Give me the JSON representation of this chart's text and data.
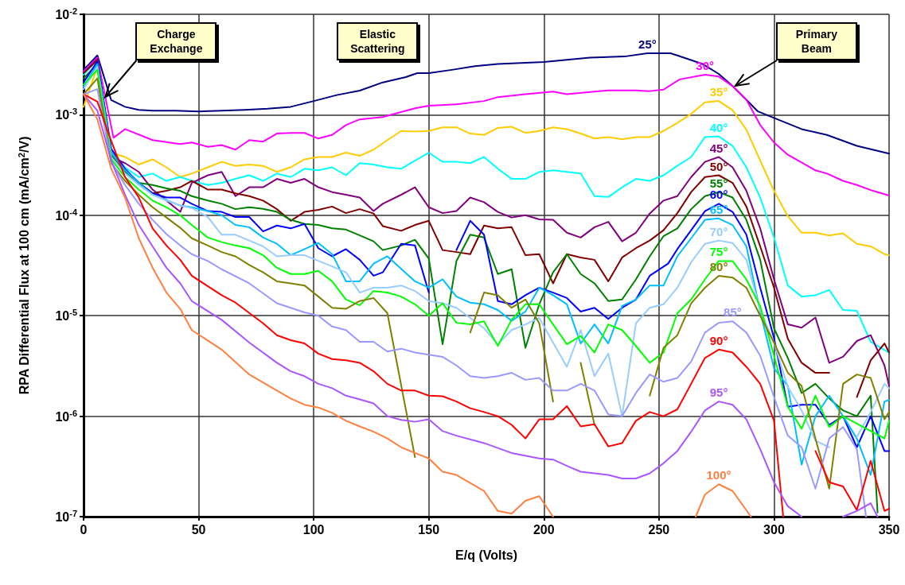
{
  "chart_data": {
    "type": "line",
    "xlabel": "E/q (Volts)",
    "ylabel": "RPA Differential Flux at 100 cm (mA/cm$^{2}$/V)",
    "log": "y",
    "grid": true,
    "legend": false,
    "marker": "none",
    "line_style": "solid",
    "xlim": [
      0,
      350
    ],
    "xticks": [
      0,
      50,
      100,
      150,
      200,
      250,
      300,
      350
    ],
    "ylim": [
      1e-07,
      0.01
    ],
    "yticks": [
      {
        "value": 1e-07,
        "label": "10$^{-7}$"
      },
      {
        "value": 1e-06,
        "label": "10$^{-6}$"
      },
      {
        "value": 1e-05,
        "label": "10$^{-5}$"
      },
      {
        "value": 0.0001,
        "label": "10$^{-4}$"
      },
      {
        "value": 0.001,
        "label": "10$^{-3}$"
      },
      {
        "value": 0.01,
        "label": "10$^{-2}$"
      }
    ],
    "annotations": [
      "Charge Exchange",
      "Elastic Scattering",
      "Primary Beam"
    ],
    "series": [
      {
        "name": "25°",
        "color": "#000080",
        "x": [
          0,
          6,
          12,
          18,
          24,
          30,
          40,
          50,
          60,
          70,
          80,
          90,
          100,
          110,
          120,
          130,
          140,
          145,
          150,
          160,
          170,
          180,
          200,
          220,
          235,
          245,
          255,
          258,
          269,
          276,
          282,
          288,
          293,
          300,
          312,
          323,
          336,
          350
        ],
        "values": [
          0.0028,
          0.0039,
          0.0014,
          0.0012,
          0.00112,
          0.0011,
          0.0011,
          0.00108,
          0.0011,
          0.00112,
          0.00115,
          0.0012,
          0.00137,
          0.00157,
          0.00174,
          0.0021,
          0.00237,
          0.0026,
          0.0026,
          0.0028,
          0.00305,
          0.0032,
          0.00335,
          0.0037,
          0.0038,
          0.0041,
          0.0041,
          0.0039,
          0.0032,
          0.00255,
          0.00193,
          0.00141,
          0.00108,
          0.00093,
          0.00072,
          0.00063,
          0.00049,
          0.00041
        ]
      },
      {
        "name": "30°",
        "color": "#ff00ff",
        "x": [
          0,
          6,
          13,
          18,
          30,
          42,
          47,
          54,
          60,
          66,
          72,
          78,
          84,
          90,
          96,
          102,
          108,
          114,
          120,
          130,
          144,
          150,
          162,
          174,
          180,
          192,
          204,
          210,
          222,
          228,
          240,
          246,
          252,
          259,
          270,
          276,
          282,
          288,
          294,
          300,
          306,
          318,
          323,
          330,
          336,
          343,
          350
        ],
        "values": [
          0.0027,
          0.0037,
          0.00059,
          0.00072,
          0.00056,
          0.00051,
          0.00053,
          0.00048,
          0.0005,
          0.00045,
          0.00056,
          0.00054,
          0.00065,
          0.00066,
          0.00066,
          0.00058,
          0.00063,
          0.00079,
          0.0009,
          0.00095,
          0.00116,
          0.00123,
          0.00127,
          0.00137,
          0.0015,
          0.0016,
          0.0017,
          0.0016,
          0.0017,
          0.00175,
          0.00175,
          0.00172,
          0.00178,
          0.00225,
          0.0025,
          0.0024,
          0.00193,
          0.00141,
          0.00079,
          0.00053,
          0.0004,
          0.00028,
          0.00026,
          0.00022,
          0.0002,
          0.000175,
          0.000157
        ]
      },
      {
        "name": "35°",
        "color": "#ffcc00",
        "x": [
          0,
          6,
          12,
          18,
          24,
          30,
          36,
          42,
          47,
          54,
          60,
          66,
          72,
          78,
          84,
          90,
          96,
          102,
          108,
          114,
          120,
          126,
          132,
          138,
          144,
          150,
          156,
          162,
          168,
          174,
          180,
          186,
          192,
          198,
          204,
          210,
          216,
          222,
          228,
          234,
          240,
          246,
          252,
          258,
          264,
          270,
          276,
          282,
          288,
          294,
          300,
          306,
          312,
          318,
          324,
          330,
          336,
          342,
          348,
          350
        ],
        "values": [
          0.0012,
          0.003,
          0.00042,
          0.00038,
          0.00032,
          0.00036,
          0.0003,
          0.00024,
          0.00026,
          0.0003,
          0.00034,
          0.00031,
          0.00032,
          0.00031,
          0.00027,
          0.0003,
          0.00036,
          0.00038,
          0.00038,
          0.00042,
          0.00039,
          0.00045,
          0.00056,
          0.00069,
          0.00068,
          0.00069,
          0.00075,
          0.00075,
          0.00065,
          0.00063,
          0.00074,
          0.00076,
          0.00066,
          0.00069,
          0.00075,
          0.00072,
          0.00065,
          0.00058,
          0.0006,
          0.00057,
          0.0006,
          0.0006,
          0.00069,
          0.00083,
          0.00102,
          0.00133,
          0.00137,
          0.00111,
          0.00071,
          0.00035,
          0.000175,
          9.8e-05,
          6.7e-05,
          6.7e-05,
          6.3e-05,
          6.6e-05,
          5.2e-05,
          4.9e-05,
          4.1e-05,
          4e-05
        ]
      },
      {
        "name": "40°",
        "color": "#00ffff",
        "x": [
          0,
          6,
          12,
          18,
          24,
          30,
          36,
          42,
          47,
          54,
          60,
          66,
          72,
          78,
          84,
          90,
          96,
          102,
          108,
          114,
          120,
          126,
          132,
          138,
          144,
          150,
          156,
          162,
          168,
          174,
          180,
          186,
          192,
          198,
          204,
          210,
          216,
          222,
          228,
          234,
          240,
          246,
          252,
          258,
          264,
          270,
          276,
          282,
          288,
          294,
          300,
          306,
          312,
          318,
          324,
          330,
          336,
          342,
          350
        ],
        "values": [
          0.0025,
          0.0035,
          0.00044,
          0.0003,
          0.00024,
          0.00026,
          0.00022,
          0.00024,
          0.00022,
          0.0002,
          0.00021,
          0.00023,
          0.00025,
          0.00022,
          0.00026,
          0.00024,
          0.00029,
          0.00028,
          0.0003,
          0.00025,
          0.00033,
          0.00032,
          0.0003,
          0.00029,
          0.00035,
          0.00042,
          0.00034,
          0.00034,
          0.00033,
          0.00038,
          0.00029,
          0.00023,
          0.00023,
          0.00027,
          0.00028,
          0.00027,
          0.00026,
          0.000155,
          0.000152,
          0.00019,
          0.00023,
          0.00022,
          0.00025,
          0.00031,
          0.00038,
          0.0006,
          0.00061,
          0.00049,
          0.0003,
          0.00015,
          6e-05,
          2e-05,
          1.55e-05,
          1.6e-05,
          1.8e-05,
          1.14e-05,
          1.12e-05,
          5.5e-06,
          4.3e-06
        ]
      },
      {
        "name": "45°",
        "color": "#800080",
        "x": [
          0,
          6,
          12,
          18,
          24,
          30,
          36,
          42,
          47,
          54,
          60,
          66,
          72,
          78,
          84,
          90,
          96,
          102,
          108,
          114,
          120,
          126,
          130,
          138,
          144,
          150,
          156,
          162,
          168,
          174,
          180,
          186,
          192,
          198,
          204,
          210,
          216,
          222,
          228,
          234,
          240,
          246,
          252,
          258,
          264,
          270,
          276,
          282,
          288,
          294,
          300,
          306,
          312,
          318,
          324,
          330,
          336,
          342,
          348,
          350
        ],
        "values": [
          0.0026,
          0.0036,
          0.00038,
          0.00033,
          0.00027,
          0.00018,
          0.00014,
          0.000108,
          0.00021,
          0.00025,
          0.00027,
          0.000155,
          0.00019,
          0.00019,
          0.00023,
          0.00021,
          0.00023,
          0.00019,
          0.00017,
          0.00016,
          0.00015,
          0.00011,
          0.00013,
          0.00016,
          0.00019,
          0.00012,
          0.000105,
          0.00011,
          0.00015,
          0.000135,
          0.000108,
          9.5e-05,
          0.0001,
          9.1e-05,
          9e-05,
          6.7e-05,
          6e-05,
          7.6e-05,
          8.6e-05,
          5.5e-05,
          6.7e-05,
          0.000104,
          0.00014,
          0.000155,
          0.00024,
          0.00034,
          0.00038,
          0.0003,
          0.000175,
          7.4e-05,
          2.3e-05,
          8.2e-06,
          7.6e-06,
          9.6e-06,
          3.4e-06,
          3.9e-06,
          5.6e-06,
          6.4e-06,
          3.2e-06,
          2e-06
        ]
      },
      {
        "name": "50°",
        "color": "#800000",
        "x": [
          0,
          6,
          12,
          18,
          24,
          30,
          36,
          42,
          47,
          54,
          60,
          66,
          72,
          78,
          84,
          90,
          96,
          102,
          108,
          114,
          120,
          126,
          130,
          138,
          144,
          150,
          156,
          162,
          168,
          174,
          180,
          186,
          192,
          198,
          204,
          210,
          216,
          222,
          228,
          234,
          240,
          246,
          252,
          258,
          264,
          270,
          276,
          282,
          288,
          294,
          300,
          306,
          312,
          318,
          324,
          330,
          336,
          342,
          348,
          350
        ],
        "values": [
          0.0026,
          0.0035,
          0.00042,
          0.00028,
          0.00021,
          0.000165,
          0.000175,
          0.00019,
          0.00022,
          0.00018,
          0.00018,
          0.000165,
          0.000155,
          0.00014,
          0.000115,
          8.8e-05,
          0.000108,
          0.000113,
          0.000122,
          0.000105,
          0.000115,
          0.000104,
          7.8e-05,
          7e-05,
          8e-05,
          8.8e-05,
          4.5e-05,
          4.3e-05,
          4.1e-05,
          7.9e-05,
          7.4e-05,
          7.6e-05,
          4e-05,
          4.1e-05,
          2.1e-05,
          4.1e-05,
          3.8e-05,
          3.6e-05,
          2.2e-05,
          3.8e-05,
          4.7e-05,
          5.6e-05,
          7.1e-05,
          0.000105,
          0.00017,
          0.00024,
          0.00025,
          0.00021,
          0.000122,
          4.9e-05,
          1.9e-05,
          5.9e-06,
          3.4e-06,
          2.7e-06,
          2.7e-06,
          null,
          1.55e-06,
          3.6e-06,
          5.3e-06,
          4.3e-06
        ]
      },
      {
        "name": "55°",
        "color": "#008000",
        "x": [
          0,
          6,
          12,
          18,
          24,
          30,
          36,
          42,
          47,
          54,
          60,
          66,
          72,
          78,
          84,
          90,
          96,
          102,
          108,
          114,
          120,
          126,
          130,
          138,
          144,
          150,
          156,
          162,
          168,
          174,
          180,
          186,
          192,
          198,
          204,
          210,
          216,
          222,
          228,
          234,
          240,
          246,
          252,
          258,
          264,
          270,
          276,
          282,
          288,
          294,
          300,
          306,
          312,
          318,
          324,
          330,
          336,
          342,
          345
        ],
        "values": [
          0.0023,
          0.0032,
          0.0004,
          0.00027,
          0.00021,
          0.0002,
          0.000185,
          0.000175,
          0.000155,
          0.00014,
          0.00013,
          0.000115,
          0.00012,
          0.000116,
          0.000108,
          9e-05,
          8.2e-05,
          8e-05,
          7.4e-05,
          7.2e-05,
          6.3e-05,
          5.5e-05,
          4.5e-05,
          5e-05,
          5.7e-05,
          3.7e-05,
          5.2e-06,
          3.5e-05,
          6.4e-05,
          6e-05,
          2.6e-05,
          2.9e-05,
          4.8e-06,
          1.3e-05,
          2.7e-05,
          4.1e-05,
          2.6e-05,
          2.1e-05,
          1.4e-05,
          1.45e-05,
          2.3e-05,
          3.9e-05,
          6.2e-05,
          7.4e-05,
          0.000115,
          0.000155,
          0.00017,
          0.00015,
          9e-05,
          3.6e-05,
          7.5e-06,
          3.8e-06,
          1.7e-06,
          2.1e-06,
          1.5e-06,
          1.14e-06,
          1e-06,
          1.6e-06,
          1.1e-07
        ]
      },
      {
        "name": "60°",
        "color": "#0000ff",
        "x": [
          0,
          6,
          12,
          18,
          24,
          30,
          36,
          42,
          47,
          54,
          60,
          66,
          72,
          78,
          84,
          90,
          96,
          102,
          108,
          114,
          120,
          126,
          130,
          138,
          144,
          150,
          156,
          162,
          168,
          174,
          180,
          186,
          192,
          198,
          204,
          210,
          216,
          222,
          228,
          234,
          240,
          246,
          254,
          258,
          264,
          270,
          276,
          282,
          288,
          294,
          300,
          306,
          312,
          318,
          324,
          330,
          336,
          342,
          348,
          350
        ],
        "values": [
          0.0021,
          0.0034,
          0.00046,
          0.00029,
          0.00021,
          0.000165,
          0.00015,
          0.00015,
          0.00013,
          0.00011,
          0.000108,
          9.6e-05,
          9.6e-05,
          6.9e-05,
          7.9e-05,
          7.4e-05,
          8.2e-05,
          4.7e-05,
          3.9e-05,
          4.6e-05,
          3.6e-05,
          2.5e-05,
          2.7e-05,
          5.2e-05,
          5e-05,
          1.7e-05,
          null,
          4.5e-05,
          8.8e-05,
          6.4e-05,
          1.4e-05,
          1.3e-05,
          1.6e-05,
          1.9e-05,
          1.7e-05,
          1.5e-05,
          1.1e-05,
          1.2e-05,
          9.3e-06,
          1.2e-05,
          1.45e-05,
          2.5e-05,
          3.3e-05,
          4.6e-05,
          7.1e-05,
          0.00011,
          0.00013,
          0.000108,
          6.4e-05,
          1.9e-05,
          6e-06,
          1.24e-06,
          1.3e-06,
          1.3e-06,
          8.2e-07,
          1e-06,
          4.9e-07,
          1e-06,
          4.5e-07,
          4.5e-07
        ]
      },
      {
        "name": "65°",
        "color": "#00bfff",
        "x": [
          0,
          6,
          12,
          18,
          24,
          30,
          42,
          47,
          54,
          60,
          66,
          72,
          78,
          84,
          90,
          96,
          102,
          108,
          114,
          120,
          126,
          132,
          144,
          150,
          156,
          162,
          168,
          174,
          180,
          186,
          192,
          198,
          204,
          210,
          216,
          222,
          228,
          234,
          240,
          246,
          252,
          258,
          264,
          270,
          276,
          282,
          288,
          294,
          300,
          306,
          312,
          318,
          324,
          330,
          336,
          342,
          348,
          350
        ],
        "values": [
          0.0019,
          0.0032,
          0.00042,
          0.00028,
          0.00021,
          0.00016,
          0.000125,
          0.00012,
          0.00011,
          0.0001,
          8e-05,
          7.6e-05,
          6e-05,
          5.2e-05,
          4e-05,
          4.6e-05,
          5.3e-05,
          4.1e-05,
          2.2e-05,
          2.2e-05,
          3.3e-05,
          3.9e-05,
          2.2e-05,
          1.9e-05,
          2.3e-05,
          1.55e-05,
          1.35e-05,
          1.3e-05,
          1.14e-05,
          8.9e-06,
          1.1e-05,
          1.9e-05,
          1.6e-05,
          1.3e-05,
          5.3e-06,
          8.2e-06,
          5.3e-06,
          1.25e-05,
          1.45e-05,
          2e-05,
          2e-05,
          3.9e-05,
          5.9e-05,
          9e-05,
          9.3e-05,
          8e-05,
          4.9e-05,
          1.1e-05,
          3e-06,
          2e-06,
          3.3e-07,
          1e-06,
          1.6e-06,
          1e-06,
          6e-07,
          2.6e-07,
          1.4e-06,
          1.45e-06
        ]
      },
      {
        "name": "70°",
        "color": "#99ccff",
        "x": [
          0,
          6,
          12,
          18,
          24,
          30,
          36,
          42,
          47,
          54,
          60,
          66,
          72,
          78,
          84,
          90,
          96,
          108,
          114,
          120,
          126,
          132,
          138,
          144,
          150,
          156,
          162,
          168,
          174,
          180,
          186,
          192,
          198,
          204,
          210,
          216,
          222,
          228,
          234,
          240,
          246,
          252,
          258,
          264,
          270,
          276,
          282,
          288,
          294,
          300,
          306,
          312,
          318,
          324,
          330,
          336,
          342,
          348,
          350
        ],
        "values": [
          0.0018,
          0.003,
          0.00038,
          0.00026,
          0.0002,
          0.00016,
          0.00014,
          0.000125,
          0.000118,
          9.6e-05,
          6.4e-05,
          6.4e-05,
          5.6e-05,
          4.9e-05,
          3.9e-05,
          4e-05,
          4e-05,
          3.1e-05,
          2.7e-05,
          1.7e-05,
          1.9e-05,
          1.9e-05,
          2e-05,
          1.76e-05,
          1.4e-05,
          1.33e-05,
          1.2e-05,
          9.5e-06,
          7.5e-06,
          5.2e-06,
          7.2e-06,
          8.2e-06,
          9.5e-06,
          5.4e-06,
          3.1e-06,
          7.2e-06,
          2.5e-06,
          4.2e-06,
          1e-06,
          8.4e-06,
          1.2e-05,
          1.3e-05,
          1.9e-05,
          3.4e-05,
          5.2e-05,
          5.6e-05,
          5.3e-05,
          3.6e-05,
          1.14e-05,
          5.4e-06,
          1.96e-06,
          1.14e-06,
          5.7e-07,
          4.9e-07,
          null,
          6.2e-07,
          1.1e-06,
          2.1e-06,
          1.9e-06
        ]
      },
      {
        "name": "75°",
        "color": "#00ff00",
        "x": [
          0,
          6,
          12,
          18,
          24,
          30,
          36,
          42,
          47,
          54,
          60,
          66,
          72,
          78,
          84,
          90,
          96,
          102,
          108,
          114,
          120,
          126,
          132,
          138,
          144,
          150,
          156,
          162,
          168,
          174,
          180,
          186,
          192,
          198,
          204,
          210,
          216,
          222,
          228,
          234,
          240,
          246,
          252,
          258,
          264,
          270,
          276,
          282,
          288,
          294,
          300,
          306,
          312,
          318,
          324,
          330,
          348,
          350
        ],
        "values": [
          0.002,
          0.0028,
          0.00036,
          0.00024,
          0.00018,
          0.00014,
          0.00012,
          0.0001,
          8e-05,
          6e-05,
          5.4e-05,
          5e-05,
          4.7e-05,
          4e-05,
          3e-05,
          2.6e-05,
          2.6e-05,
          2.8e-05,
          2.2e-05,
          1.45e-05,
          1.27e-05,
          1.76e-05,
          1.7e-05,
          1.55e-05,
          1.3e-05,
          1e-05,
          1.33e-05,
          8.5e-06,
          8.2e-06,
          8.8e-06,
          5e-06,
          9.1e-06,
          1.3e-05,
          1.3e-05,
          8.2e-06,
          5.2e-06,
          6.3e-06,
          4.3e-06,
          8.2e-06,
          7.2e-06,
          5e-06,
          3.4e-06,
          4.3e-06,
          1.06e-05,
          1.45e-05,
          2.3e-05,
          3.5e-05,
          3.5e-05,
          2.3e-05,
          1.25e-05,
          4e-06,
          1.24e-06,
          7.5e-07,
          1.6e-06,
          7.8e-07,
          1e-06,
          6e-07,
          9e-07
        ]
      },
      {
        "name": "80°",
        "color": "#808000",
        "x": [
          0,
          6,
          12,
          18,
          24,
          30,
          36,
          42,
          47,
          54,
          60,
          66,
          72,
          78,
          84,
          90,
          96,
          102,
          108,
          114,
          120,
          126,
          132,
          144,
          156,
          168,
          174,
          180,
          186,
          192,
          198,
          204,
          210,
          216,
          222,
          234,
          246,
          252,
          258,
          264,
          270,
          276,
          282,
          288,
          294,
          300,
          306,
          312,
          318,
          324,
          330,
          336,
          342,
          348,
          350
        ],
        "values": [
          0.0016,
          0.0023,
          0.00033,
          0.00022,
          0.00016,
          0.00012,
          9.5e-05,
          7.5e-05,
          5.9e-05,
          5e-05,
          4.3e-05,
          3.9e-05,
          3.2e-05,
          2.7e-05,
          2.2e-05,
          2.1e-05,
          2e-05,
          1.55e-05,
          1.2e-05,
          1.17e-05,
          1.4e-05,
          1.5e-05,
          1.06e-05,
          3.9e-07,
          null,
          6.8e-06,
          1.7e-05,
          1.6e-05,
          1.2e-05,
          1.45e-05,
          8.4e-06,
          1.4e-06,
          null,
          3.4e-06,
          8.2e-07,
          null,
          1.6e-06,
          4.8e-06,
          6.4e-06,
          1.33e-05,
          1.9e-05,
          2.5e-05,
          2.4e-05,
          1.9e-05,
          1e-05,
          5.4e-06,
          2.7e-06,
          2e-06,
          6e-07,
          1.9e-07,
          2.1e-06,
          2.6e-06,
          2.4e-06,
          9.3e-07,
          1.1e-06
        ]
      },
      {
        "name": "85°",
        "color": "#9999ff",
        "x": [
          0,
          6,
          12,
          18,
          24,
          30,
          36,
          42,
          47,
          54,
          60,
          72,
          84,
          90,
          96,
          102,
          108,
          114,
          120,
          126,
          132,
          138,
          144,
          150,
          156,
          162,
          168,
          174,
          180,
          186,
          192,
          198,
          204,
          210,
          216,
          222,
          228,
          234,
          240,
          246,
          252,
          258,
          264,
          270,
          276,
          282,
          288,
          294,
          300,
          306,
          312,
          318,
          324,
          330,
          336,
          340
        ],
        "values": [
          0.0016,
          0.0018,
          0.00034,
          0.0002,
          0.00013,
          9e-05,
          6.5e-05,
          5e-05,
          4.1e-05,
          3.5e-05,
          2.9e-05,
          2.1e-05,
          1.33e-05,
          1.2e-05,
          1.08e-05,
          1e-05,
          7.8e-06,
          7.2e-06,
          5.5e-06,
          5.5e-06,
          4.4e-06,
          4.7e-06,
          4.3e-06,
          4.1e-06,
          3.9e-06,
          3.2e-06,
          2.5e-06,
          2.4e-06,
          2.5e-06,
          2.7e-06,
          2.3e-06,
          2.4e-06,
          1.8e-06,
          1.8e-06,
          2.1e-06,
          1.8e-06,
          1.04e-06,
          1e-06,
          1.7e-06,
          2.6e-06,
          2.2e-06,
          2.4e-06,
          3.5e-06,
          6.8e-06,
          8.5e-06,
          8.8e-06,
          6.8e-06,
          4e-06,
          1.55e-06,
          6.4e-07,
          4.9e-07,
          1.9e-07,
          6e-07,
          7.8e-07,
          4.7e-07,
          1e-07
        ]
      },
      {
        "name": "90°",
        "color": "#ff0000",
        "x": [
          0,
          6,
          12,
          18,
          24,
          30,
          36,
          42,
          47,
          60,
          66,
          78,
          84,
          90,
          96,
          102,
          108,
          114,
          120,
          126,
          132,
          138,
          144,
          150,
          156,
          162,
          168,
          174,
          180,
          186,
          192,
          198,
          204,
          210,
          216,
          222,
          228,
          234,
          240,
          246,
          252,
          258,
          264,
          270,
          276,
          282,
          288,
          294,
          300,
          304,
          310,
          318,
          324,
          330,
          336,
          342,
          348,
          350
        ],
        "values": [
          0.0016,
          0.00135,
          0.00055,
          0.00024,
          0.00015,
          7.4e-05,
          5e-05,
          3.6e-05,
          2.5e-05,
          1.6e-05,
          1.35e-05,
          8.4e-06,
          6.4e-06,
          5.7e-06,
          5.3e-06,
          4.2e-06,
          3.7e-06,
          3.6e-06,
          3.4e-06,
          2.8e-06,
          2.1e-06,
          1.8e-06,
          1.8e-06,
          1.6e-06,
          1.58e-06,
          1.4e-06,
          1.2e-06,
          1.1e-06,
          1e-06,
          8.2e-07,
          6e-07,
          9.3e-07,
          9.3e-07,
          1.26e-06,
          7.9e-07,
          8.3e-07,
          5e-07,
          5.4e-07,
          9e-07,
          1.1e-06,
          1e-06,
          1.17e-06,
          2.1e-06,
          3.8e-06,
          4.6e-06,
          4.3e-06,
          3.1e-06,
          2.1e-06,
          9e-07,
          1e-07,
          null,
          4.5e-07,
          2.2e-07,
          2e-07,
          1.16e-07,
          3.6e-07,
          1.14e-07,
          1.2e-07
        ]
      },
      {
        "name": "95°",
        "color": "#aa55ff",
        "x": [
          0,
          6,
          12,
          18,
          24,
          30,
          36,
          42,
          47,
          60,
          72,
          84,
          90,
          96,
          102,
          108,
          114,
          120,
          126,
          132,
          138,
          144,
          150,
          156,
          162,
          174,
          186,
          198,
          204,
          210,
          216,
          228,
          234,
          240,
          246,
          252,
          258,
          264,
          270,
          276,
          282,
          288,
          294,
          300,
          306,
          312,
          320,
          330,
          336,
          342,
          345
        ],
        "values": [
          0.0016,
          0.0011,
          0.00035,
          0.00016,
          8e-05,
          4.9e-05,
          3e-05,
          2.1e-05,
          1.4e-05,
          9.1e-06,
          5.4e-06,
          3.4e-06,
          2.8e-06,
          2.5e-06,
          2.1e-06,
          1.9e-06,
          1.6e-06,
          1.47e-06,
          1.34e-06,
          1e-06,
          9.2e-07,
          8.8e-07,
          9.3e-07,
          7.1e-07,
          6.4e-07,
          5.4e-07,
          4.3e-07,
          3.8e-07,
          3.7e-07,
          3.2e-07,
          2.8e-07,
          2.6e-07,
          2.4e-07,
          2.4e-07,
          2.7e-07,
          3.4e-07,
          4.5e-07,
          7e-07,
          1.14e-06,
          1.4e-06,
          1.3e-06,
          9.3e-07,
          4.7e-07,
          2.2e-07,
          1.27e-07,
          1e-07,
          null,
          1e-07,
          1.14e-07,
          1.36e-07,
          1e-07
        ]
      },
      {
        "name": "100°",
        "color": "#ff8040",
        "x": [
          0,
          6,
          12,
          18,
          24,
          30,
          36,
          42,
          47,
          60,
          72,
          84,
          90,
          96,
          102,
          108,
          114,
          120,
          126,
          132,
          138,
          144,
          150,
          156,
          162,
          174,
          180,
          186,
          192,
          198,
          204,
          235,
          266,
          270,
          276,
          282,
          290
        ],
        "values": [
          0.0016,
          0.0009,
          0.00029,
          0.00015,
          5.9e-05,
          3e-05,
          1.7e-05,
          1.17e-05,
          7.2e-06,
          4.6e-06,
          2.6e-06,
          1.8e-06,
          1.5e-06,
          1.3e-06,
          1.22e-06,
          1.08e-06,
          9e-07,
          7.9e-07,
          7e-07,
          6e-07,
          4.9e-07,
          4.3e-07,
          3.8e-07,
          2.8e-07,
          2.6e-07,
          1.8e-07,
          1.14e-07,
          1.07e-07,
          1.44e-07,
          1.6e-07,
          1e-07,
          null,
          1e-07,
          1.66e-07,
          2.1e-07,
          1.8e-07,
          1e-07
        ]
      }
    ]
  }
}
